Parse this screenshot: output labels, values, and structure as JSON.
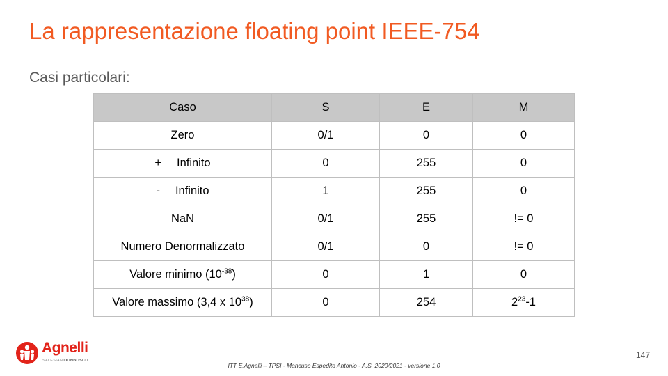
{
  "slide": {
    "title": "La rappresentazione floating point IEEE-754",
    "subtitle": "Casi particolari:",
    "page_number": "147",
    "footer": "ITT E.Agnelli – TPSI  - Mancuso Espedito Antonio - A.S. 2020/2021  - versione 1.0"
  },
  "logo": {
    "name": "Agnelli",
    "tagline_light": "SALESIANI",
    "tagline_bold": "DONBOSCO",
    "brand_color": "#E2231A"
  },
  "table": {
    "headers": [
      "Caso",
      "S",
      "E",
      "M"
    ],
    "rows": [
      {
        "caso": "Zero",
        "s": "0/1",
        "e": "0",
        "m": "0"
      },
      {
        "caso_sign": "+",
        "caso": "Infinito",
        "s": "0",
        "e": "255",
        "m": "0"
      },
      {
        "caso_sign": "-",
        "caso": "Infinito",
        "s": "1",
        "e": "255",
        "m": "0"
      },
      {
        "caso": "NaN",
        "s": "0/1",
        "e": "255",
        "m": "!= 0"
      },
      {
        "caso": "Numero Denormalizzato",
        "s": "0/1",
        "e": "0",
        "m": "!= 0"
      },
      {
        "caso_prefix": "Valore minimo (10",
        "caso_exp": "-38",
        "caso_suffix": ")",
        "s": "0",
        "e": "1",
        "m": "0"
      },
      {
        "caso_prefix": "Valore massimo (3,4 x 10",
        "caso_exp": "38",
        "caso_suffix": ")",
        "s": "0",
        "e": "254",
        "m_base": "2",
        "m_exp": "23",
        "m_suffix": "-1"
      }
    ]
  }
}
